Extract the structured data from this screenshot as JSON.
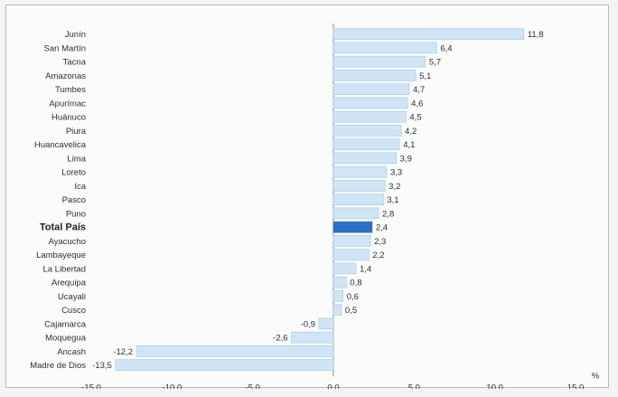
{
  "chart_data": {
    "type": "bar",
    "orientation": "horizontal",
    "categories": [
      "Junín",
      "San Martín",
      "Tacna",
      "Amazonas",
      "Tumbes",
      "Apurímac",
      "Huánuco",
      "Piura",
      "Huancavelica",
      "Lima",
      "Loreto",
      "Ica",
      "Pasco",
      "Puno",
      "Total País",
      "Ayacucho",
      "Lambayeque",
      "La Libertad",
      "Arequipa",
      "Ucayali",
      "Cusco",
      "Cajamarca",
      "Moquegua",
      "Ancash",
      "Madre de Dios"
    ],
    "values": [
      11.8,
      6.4,
      5.7,
      5.1,
      4.7,
      4.6,
      4.5,
      4.2,
      4.1,
      3.9,
      3.3,
      3.2,
      3.1,
      2.8,
      2.4,
      2.3,
      2.2,
      1.4,
      0.8,
      0.6,
      0.5,
      -0.9,
      -2.6,
      -12.2,
      -13.5
    ],
    "value_labels": [
      "11,8",
      "6,4",
      "5,7",
      "5,1",
      "4,7",
      "4,6",
      "4,5",
      "4,2",
      "4,1",
      "3,9",
      "3,3",
      "3,2",
      "3,1",
      "2,8",
      "2,4",
      "2,3",
      "2,2",
      "1,4",
      "0,8",
      "0,6",
      "0,5",
      "-0,9",
      "-2,6",
      "-12,2",
      "-13,5"
    ],
    "highlight_category": "Total País",
    "xlim": [
      -15,
      15
    ],
    "xticks": [
      -15,
      -10,
      -5,
      0,
      5,
      10,
      15
    ],
    "xtick_labels": [
      "-15,0",
      "-10,0",
      "-5,0",
      "0,0",
      "5,0",
      "10,0",
      "15,0"
    ],
    "xunit": "%",
    "colors": {
      "bar": "#cfe5f5",
      "bar_edge": "#9fc7e6",
      "highlight": "#2a6fc9"
    },
    "grid": false
  }
}
